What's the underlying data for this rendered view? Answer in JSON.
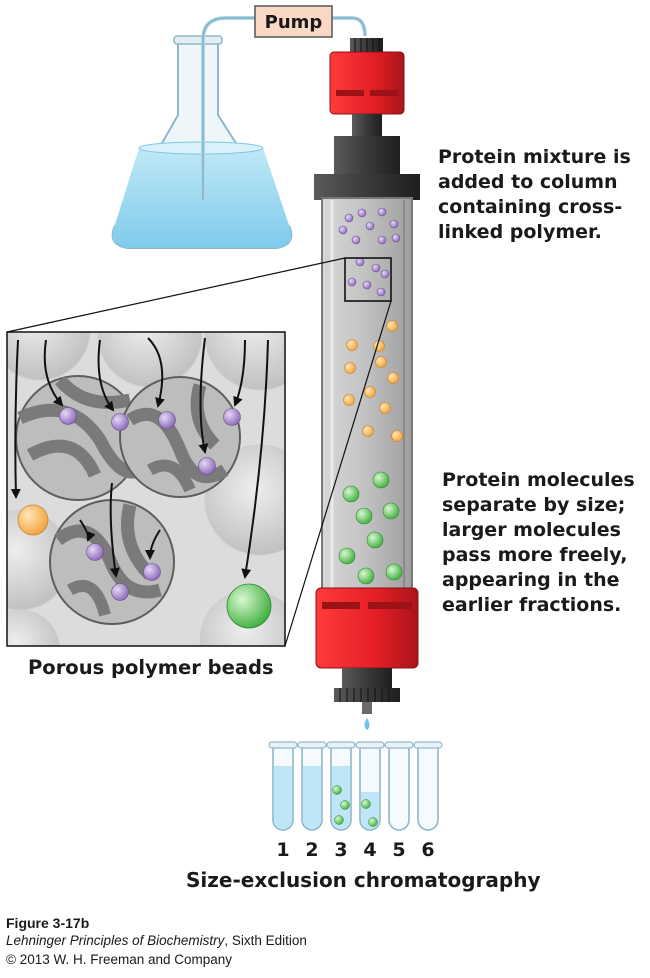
{
  "diagram": {
    "pump_label": "Pump",
    "caption_top": [
      "Protein mixture is",
      "added to column",
      "containing cross-",
      "linked polymer."
    ],
    "caption_middle": [
      "Protein molecules",
      "separate by size;",
      "larger molecules",
      "pass more freely,",
      "appearing in the",
      "earlier fractions."
    ],
    "beads_label": "Porous polymer beads",
    "tube_numbers": [
      "1",
      "2",
      "3",
      "4",
      "5",
      "6"
    ],
    "title": "Size-exclusion chromatography"
  },
  "figure": {
    "number": "Figure 3-17b",
    "book_title": "Lehninger Principles of Biochemistry",
    "edition": ", Sixth Edition",
    "copyright": "© 2013 W. H. Freeman and Company"
  },
  "colors": {
    "cap_red": "#e8222a",
    "cap_dark": "#b2141a",
    "pump_box": "#f7d6c0",
    "liquid_blue": "#aee1f5",
    "protein_purple": "#9d7cc4",
    "protein_orange": "#f5b45a",
    "protein_green": "#5ec95e",
    "bead_gray": "#8c8c8c"
  }
}
